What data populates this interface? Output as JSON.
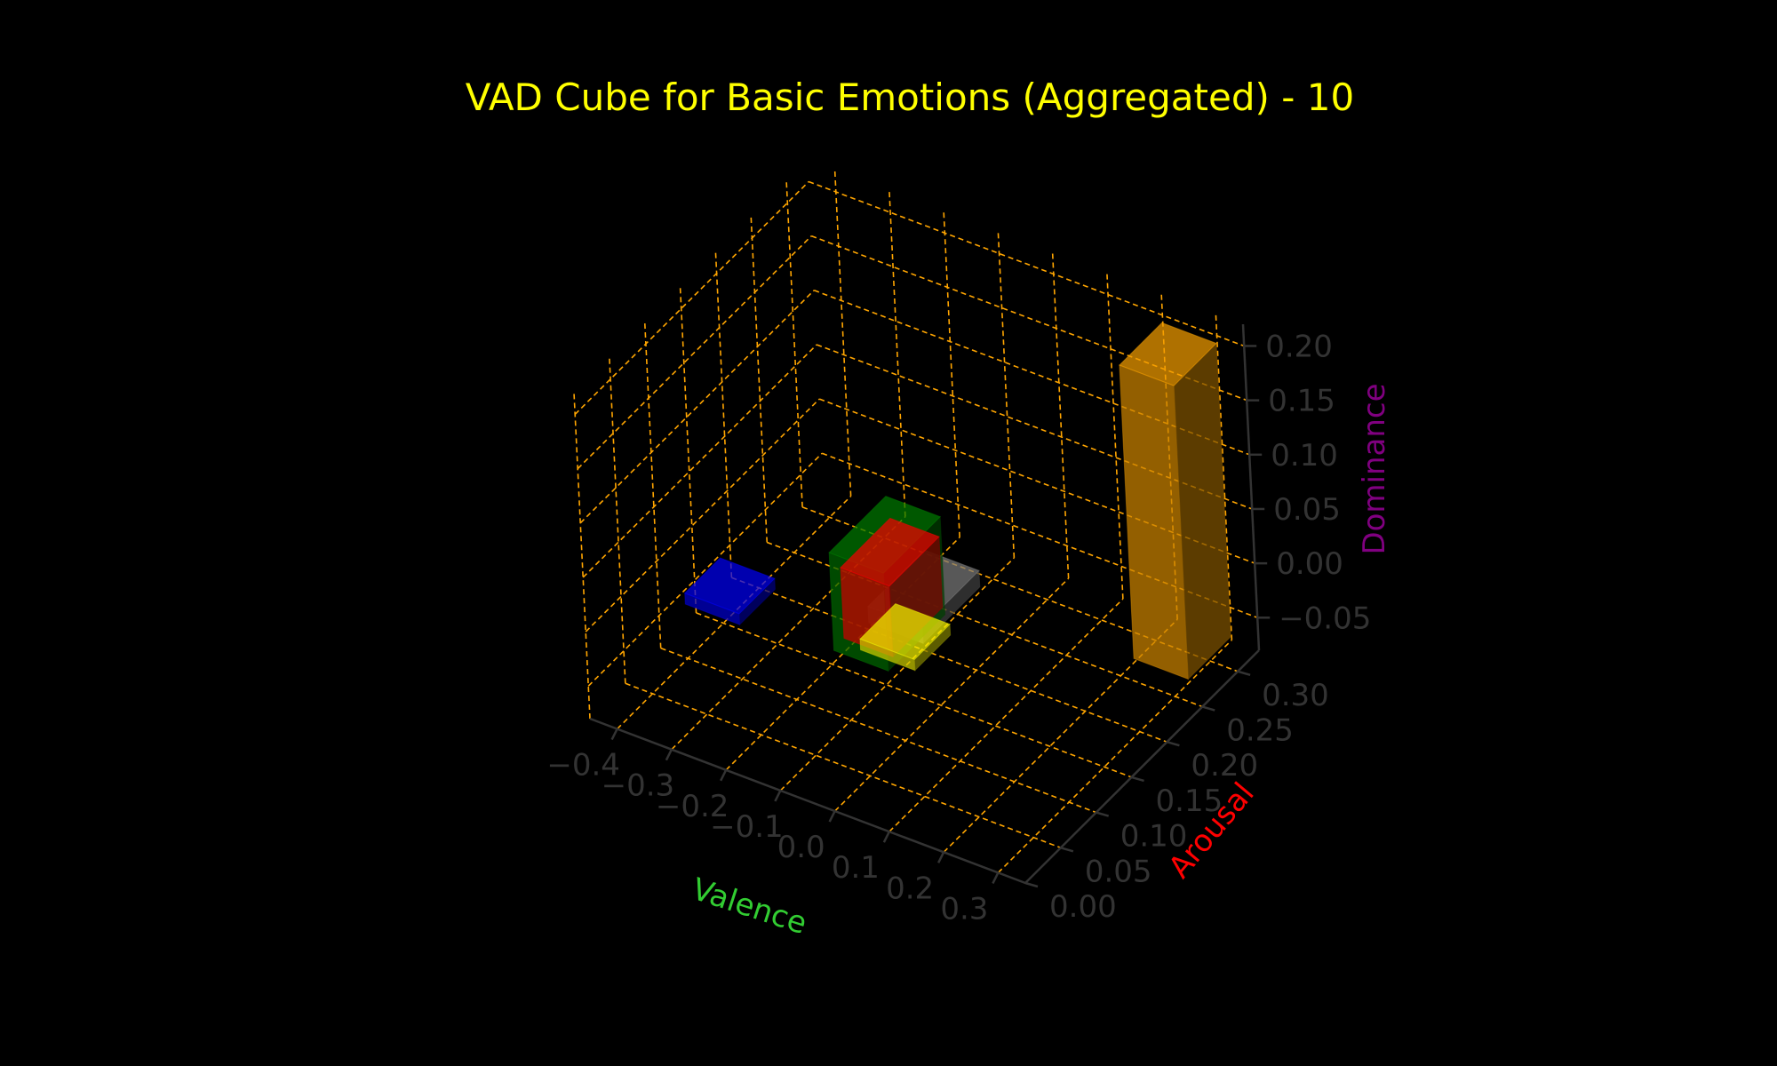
{
  "chart_data": {
    "type": "bar3d",
    "title": "VAD Cube for Basic Emotions (Aggregated) - 10",
    "axes": {
      "x": {
        "label": "Valence",
        "range": [
          -0.45,
          0.35
        ],
        "ticks": [
          "−0.4",
          "−0.3",
          "−0.2",
          "−0.1",
          "0.0",
          "0.1",
          "0.2",
          "0.3"
        ],
        "tick_values": [
          -0.4,
          -0.3,
          -0.2,
          -0.1,
          0.0,
          0.1,
          0.2,
          0.3
        ]
      },
      "y": {
        "label": "Arousal",
        "range": [
          0.0,
          0.33
        ],
        "ticks": [
          "0.00",
          "0.05",
          "0.10",
          "0.15",
          "0.20",
          "0.25",
          "0.30"
        ],
        "tick_values": [
          0.0,
          0.05,
          0.1,
          0.15,
          0.2,
          0.25,
          0.3
        ]
      },
      "z": {
        "label": "Dominance",
        "range": [
          -0.08,
          0.22
        ],
        "ticks": [
          "−0.05",
          "0.00",
          "0.05",
          "0.10",
          "0.15",
          "0.20"
        ],
        "tick_values": [
          -0.05,
          0.0,
          0.05,
          0.1,
          0.15,
          0.2
        ]
      }
    },
    "bars": [
      {
        "color": "#0000ff",
        "x": -0.4,
        "y": 0.1,
        "dx": 0.1,
        "dy": 0.05,
        "z0": -0.03,
        "dz": 0.01
      },
      {
        "color": "#008000",
        "x": -0.14,
        "y": 0.11,
        "dx": 0.1,
        "dy": 0.08,
        "z0": -0.03,
        "dz": 0.09
      },
      {
        "color": "#808080",
        "x": -0.1,
        "y": 0.13,
        "dx": 0.1,
        "dy": 0.08,
        "z0": -0.01,
        "dz": 0.015
      },
      {
        "color": "#ff0000",
        "x": -0.12,
        "y": 0.11,
        "dx": 0.09,
        "dy": 0.07,
        "z0": -0.015,
        "dz": 0.065
      },
      {
        "color": "#ffff00",
        "x": -0.09,
        "y": 0.11,
        "dx": 0.1,
        "dy": 0.05,
        "z0": -0.02,
        "dz": 0.01
      },
      {
        "color": "#ffa500",
        "x": 0.24,
        "y": 0.24,
        "dx": 0.1,
        "dy": 0.06,
        "z0": -0.05,
        "dz": 0.27
      }
    ],
    "grid": true,
    "grid_color": "#ffa500",
    "title_color": "#ffff00",
    "xlabel_color": "#32cd32",
    "ylabel_color": "#ff0000",
    "zlabel_color": "#800080",
    "tick_color": "#333333",
    "background": "#000000"
  }
}
